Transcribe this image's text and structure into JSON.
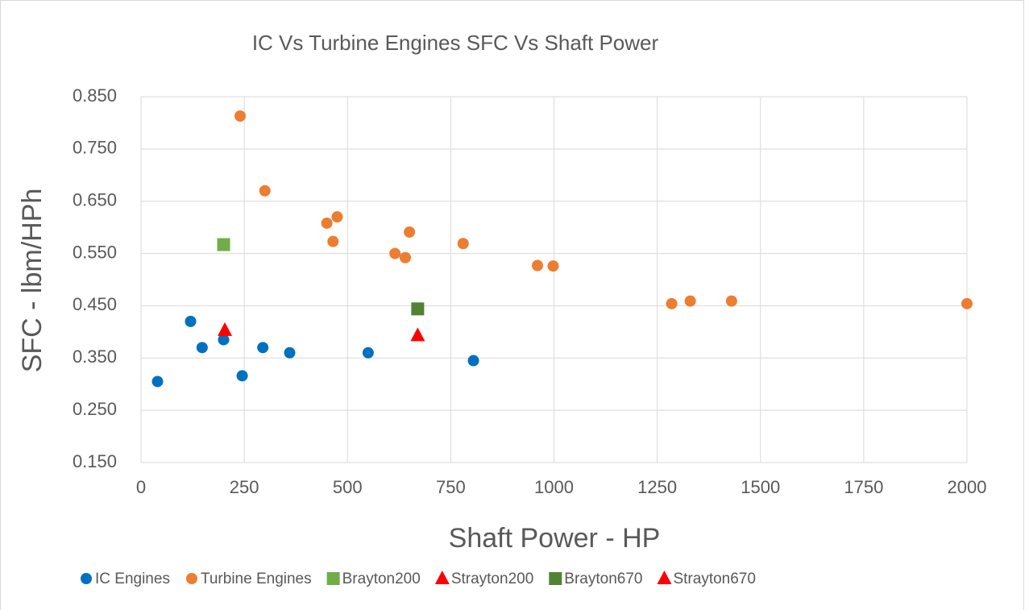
{
  "chart_data": {
    "type": "scatter",
    "title": "IC Vs Turbine Engines SFC Vs Shaft Power",
    "x_label": "Shaft Power - HP",
    "y_label": "SFC - lbm/HPh",
    "xlim": [
      0,
      2000
    ],
    "xticks": [
      0,
      250,
      500,
      750,
      1000,
      1250,
      1500,
      1750,
      2000
    ],
    "ylim": [
      0.15,
      0.85
    ],
    "yticks": [
      {
        "value": 0.15,
        "label": "0.150"
      },
      {
        "value": 0.25,
        "label": "0.250"
      },
      {
        "value": 0.35,
        "label": "0.350"
      },
      {
        "value": 0.45,
        "label": "0.450"
      },
      {
        "value": 0.55,
        "label": "0.550"
      },
      {
        "value": 0.65,
        "label": "0.650"
      },
      {
        "value": 0.75,
        "label": "0.750"
      },
      {
        "value": 0.85,
        "label": "0.850"
      }
    ],
    "grid": true,
    "legend": "bottom",
    "series": [
      {
        "name": "IC Engines",
        "color": "#0070c0",
        "marker": "circle",
        "x": [
          40,
          120,
          148,
          200,
          245,
          295,
          360,
          550,
          805
        ],
        "values": [
          0.305,
          0.42,
          0.37,
          0.385,
          0.316,
          0.37,
          0.36,
          0.36,
          0.345
        ]
      },
      {
        "name": "Turbine Engines",
        "color": "#ed7d31",
        "marker": "circle",
        "x": [
          240,
          300,
          450,
          475,
          465,
          615,
          640,
          650,
          780,
          960,
          998,
          1285,
          1330,
          1430,
          2000
        ],
        "values": [
          0.813,
          0.67,
          0.608,
          0.62,
          0.573,
          0.55,
          0.542,
          0.591,
          0.569,
          0.527,
          0.526,
          0.454,
          0.459,
          0.459,
          0.454
        ]
      },
      {
        "name": "Brayton200",
        "color": "#70ad47",
        "marker": "square",
        "x": [
          200
        ],
        "values": [
          0.567
        ]
      },
      {
        "name": "Strayton200",
        "color": "#ff0000",
        "marker": "triangle",
        "x": [
          203
        ],
        "values": [
          0.403
        ]
      },
      {
        "name": "Brayton670",
        "color": "#548235",
        "marker": "square",
        "x": [
          670
        ],
        "values": [
          0.444
        ]
      },
      {
        "name": "Strayton670",
        "color": "#ff0000",
        "marker": "triangle",
        "x": [
          670
        ],
        "values": [
          0.393
        ]
      }
    ]
  }
}
